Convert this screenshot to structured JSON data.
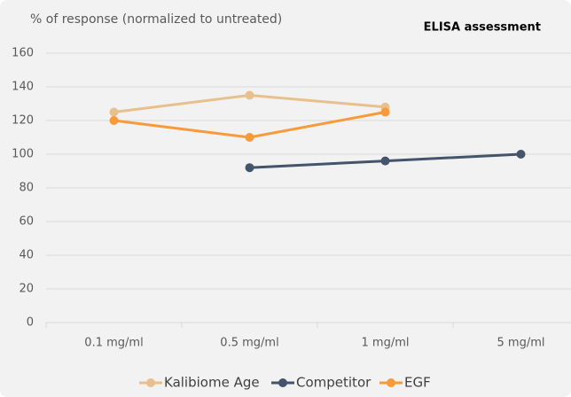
{
  "chart_data": {
    "type": "line",
    "title": "ELISA assessment",
    "y_label": "% of response (normalized to untreated)",
    "categories": [
      "0.1 mg/ml",
      "0.5 mg/ml",
      "1 mg/ml",
      "5 mg/ml"
    ],
    "series": [
      {
        "name": "Kalibiome Age",
        "color": "#e8c08d",
        "values": [
          125,
          135,
          128,
          null
        ]
      },
      {
        "name": "Competitor",
        "color": "#44546a",
        "values": [
          null,
          92,
          96,
          100
        ]
      },
      {
        "name": "EGF",
        "color": "#f79a3a",
        "values": [
          120,
          110,
          125,
          null
        ]
      }
    ],
    "ylim": [
      0,
      160
    ],
    "yticks": [
      0,
      20,
      40,
      60,
      80,
      100,
      120,
      140,
      160
    ],
    "grid": true,
    "legend": "bottom"
  }
}
